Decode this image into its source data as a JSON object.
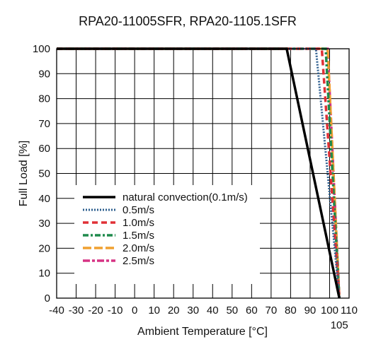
{
  "chart_data": {
    "type": "line",
    "title": "RPA20-11005SFR, RPA20-1105.1SFR",
    "xlabel": "Ambient Temperature [°C]",
    "ylabel": "Full Load [%]",
    "xlim": [
      -40,
      110
    ],
    "ylim": [
      0,
      100
    ],
    "x_ticks": [
      -40,
      -30,
      -20,
      -10,
      0,
      10,
      20,
      30,
      40,
      50,
      60,
      70,
      80,
      90,
      100,
      110
    ],
    "x_tick_labels": [
      "-40",
      "-30",
      "-20",
      "-10",
      "0",
      "10",
      "20",
      "30",
      "40",
      "50",
      "60",
      "70",
      "80",
      "90",
      "100",
      "110"
    ],
    "extra_x_tick": {
      "value": 105,
      "label": "105"
    },
    "y_ticks": [
      0,
      10,
      20,
      30,
      40,
      50,
      60,
      70,
      80,
      90,
      100
    ],
    "y_tick_labels": [
      "0",
      "10",
      "20",
      "30",
      "40",
      "50",
      "60",
      "70",
      "80",
      "90",
      "100"
    ],
    "grid": true,
    "legend_position": "left-bottom",
    "series": [
      {
        "name": "natural convection(0.1m/s)",
        "color": "#000000",
        "style": "solid",
        "x": [
          -40,
          78,
          105
        ],
        "y": [
          100,
          100,
          0
        ]
      },
      {
        "name": "0.5m/s",
        "color": "#2e5f8f",
        "style": "dotted",
        "x": [
          -40,
          93,
          105
        ],
        "y": [
          100,
          100,
          0
        ]
      },
      {
        "name": "1.0m/s",
        "color": "#e03036",
        "style": "dashed",
        "x": [
          -40,
          96,
          105
        ],
        "y": [
          100,
          100,
          0
        ]
      },
      {
        "name": "1.5m/s",
        "color": "#1f8a4c",
        "style": "dashdot",
        "x": [
          -40,
          98,
          105
        ],
        "y": [
          100,
          100,
          0
        ]
      },
      {
        "name": "2.0m/s",
        "color": "#f0a030",
        "style": "longdash",
        "x": [
          -40,
          99,
          105
        ],
        "y": [
          100,
          100,
          0
        ]
      },
      {
        "name": "2.5m/s",
        "color": "#d63384",
        "style": "dashdot-long",
        "x": [
          -40,
          99,
          105
        ],
        "y": [
          100,
          100,
          0
        ]
      }
    ]
  }
}
